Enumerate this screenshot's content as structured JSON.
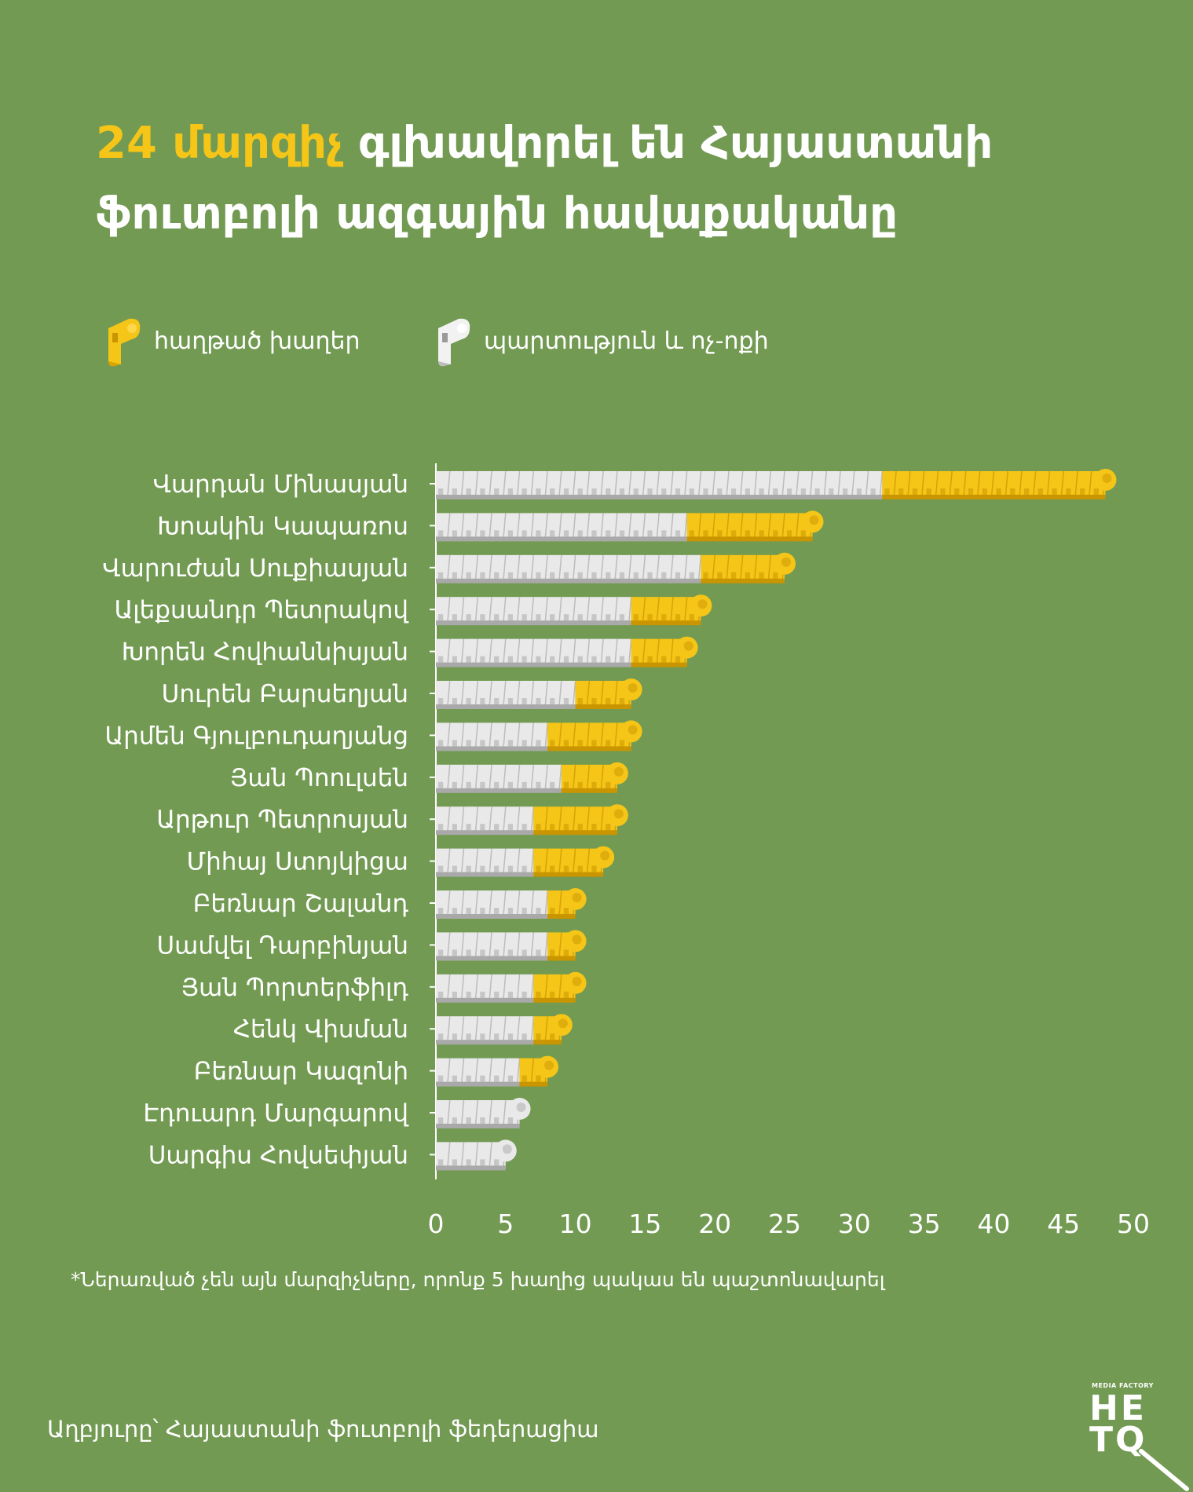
{
  "title": {
    "highlight": "24 մարզիչ",
    "rest": " գլխավորել են Հայաստանի ֆուտբոլի ազգային հավաքականը"
  },
  "legend": {
    "won": "հաղթած խաղեր",
    "other": "պարտություն և ոչ-ոքի"
  },
  "colors": {
    "background": "#729a52",
    "won": "#f5c518",
    "other": "#e9e9e9"
  },
  "chart_data": {
    "type": "bar",
    "orientation": "horizontal",
    "stacked": true,
    "categories": [
      "Վարդան Մինասյան",
      "Խոակին Կապառոս",
      "Վարուժան Սուքիասյան",
      "Ալեքսանդր Պետրակով",
      "Խորեն Հովհաննիսյան",
      "Սուրեն Բարսեղյան",
      "Արմեն Գյուլբուդաղյանց",
      "Յան Պոուլսեն",
      "Արթուր Պետրոսյան",
      "Միհայ Ստոյկիցա",
      "Բեռնար Շալանդ",
      "Սամվել Դարբինյան",
      "Յան Պորտերֆիլդ",
      "Հենկ Վիսման",
      "Բեռնար Կազոնի",
      "Էդուարդ Մարգարով",
      "Սարգիս Հովսեփյան"
    ],
    "series": [
      {
        "name": "պարտություն և ոչ-ոքի",
        "values": [
          32,
          18,
          19,
          14,
          14,
          10,
          8,
          9,
          7,
          7,
          8,
          8,
          7,
          7,
          6,
          6,
          5
        ]
      },
      {
        "name": "հաղթած խաղեր",
        "values": [
          16,
          9,
          6,
          5,
          4,
          4,
          6,
          4,
          6,
          5,
          2,
          2,
          3,
          2,
          2,
          0,
          0
        ]
      }
    ],
    "xticks": [
      "0",
      "5",
      "10",
      "15",
      "20",
      "25",
      "30",
      "35",
      "40",
      "45",
      "50"
    ],
    "xlim": [
      0,
      50
    ]
  },
  "footnote": "*Ներառված չեն այն մարզիչները, որոնք 5 խաղից պակաս են պաշտոնավարել",
  "source": "Աղբյուրը՝ Հայաստանի ֆուտբոլի ֆեդերացիա",
  "logo": {
    "small": "MEDIA FACTORY",
    "line1": "HE",
    "line2": "TQ"
  }
}
